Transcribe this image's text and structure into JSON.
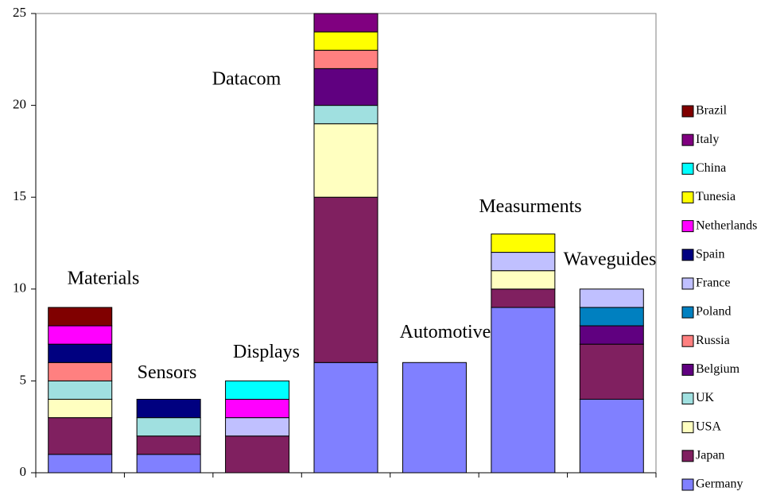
{
  "chart_data": {
    "type": "stacked_bar",
    "categories": [
      "Materials",
      "Sensors",
      "Displays",
      "Datacom",
      "Automotive",
      "Measurments",
      "Waveguides"
    ],
    "series": [
      {
        "name": "Germany",
        "color": "#8080ff",
        "values": [
          1,
          1,
          0,
          6,
          6,
          9,
          4
        ]
      },
      {
        "name": "Japan",
        "color": "#802060",
        "values": [
          2,
          1,
          2,
          9,
          0,
          1,
          3
        ]
      },
      {
        "name": "USA",
        "color": "#ffffc0",
        "values": [
          1,
          0,
          0,
          4,
          0,
          1,
          0
        ]
      },
      {
        "name": "UK",
        "color": "#a0e0e0",
        "values": [
          1,
          1,
          0,
          1,
          0,
          0,
          0
        ]
      },
      {
        "name": "Belgium",
        "color": "#600080",
        "values": [
          0,
          0,
          0,
          2,
          0,
          0,
          1
        ]
      },
      {
        "name": "Russia",
        "color": "#ff8080",
        "values": [
          1,
          0,
          0,
          1,
          0,
          0,
          0
        ]
      },
      {
        "name": "Poland",
        "color": "#0080c0",
        "values": [
          0,
          0,
          0,
          0,
          0,
          0,
          1
        ]
      },
      {
        "name": "France",
        "color": "#c0c0ff",
        "values": [
          0,
          0,
          1,
          0,
          0,
          1,
          1
        ]
      },
      {
        "name": "Spain",
        "color": "#000080",
        "values": [
          1,
          1,
          0,
          0,
          0,
          0,
          0
        ]
      },
      {
        "name": "Netherlands",
        "color": "#ff00ff",
        "values": [
          1,
          0,
          1,
          0,
          0,
          0,
          0
        ]
      },
      {
        "name": "Tunesia",
        "color": "#ffff00",
        "values": [
          0,
          0,
          0,
          1,
          0,
          1,
          0
        ]
      },
      {
        "name": "China",
        "color": "#00ffff",
        "values": [
          0,
          0,
          1,
          0,
          0,
          0,
          0
        ]
      },
      {
        "name": "Italy",
        "color": "#800080",
        "values": [
          0,
          0,
          0,
          1,
          0,
          0,
          0
        ]
      },
      {
        "name": "Brazil",
        "color": "#800000",
        "values": [
          1,
          0,
          0,
          0,
          0,
          0,
          0
        ]
      }
    ],
    "ylim": [
      0,
      25
    ],
    "yticks": [
      0,
      5,
      10,
      15,
      20,
      25
    ],
    "grid": false,
    "legend": "right"
  }
}
